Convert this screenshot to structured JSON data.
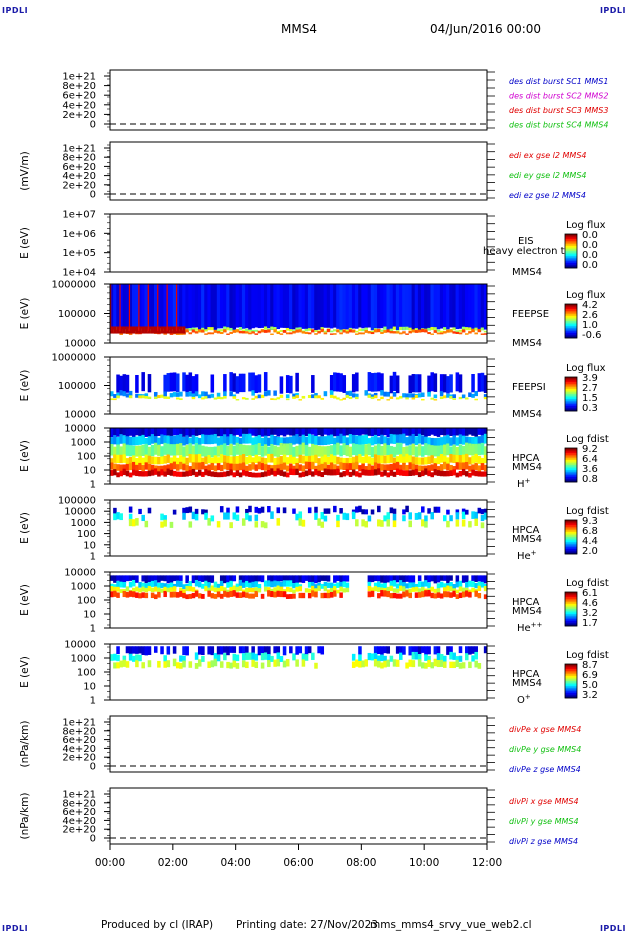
{
  "corners": {
    "tl": "IPDLI",
    "tr": "IPDLI",
    "bl": "IPDLI",
    "br": "IPDLI"
  },
  "header": {
    "spacecraft": "MMS4",
    "datetime": "04/Jun/2016 00:00"
  },
  "footer": {
    "producer": "Produced by cl (IRAP)",
    "printing": "Printing date: 27/Nov/2023",
    "file": "mms_mms4_srvy_vue_web2.cl"
  },
  "colors": {
    "red": "#e00000",
    "green": "#10c010",
    "blue": "#0000c8",
    "magenta": "#d000d0"
  },
  "chart_data": {
    "type": "multi-panel",
    "x_tick_labels": [
      "00:00",
      "02:00",
      "04:00",
      "06:00",
      "08:00",
      "10:00",
      "12:00"
    ],
    "panels": [
      {
        "kind": "line",
        "ylabel": "",
        "ylim": [
          0,
          1e+21
        ],
        "y_ticks": [
          "1e+21",
          "8e+20",
          "6e+20",
          "4e+20",
          "2e+20",
          "0"
        ],
        "legend": [
          {
            "text": "des dist burst SC1 MMS1",
            "color": "#0000c8"
          },
          {
            "text": "des dist burst SC2 MMS2",
            "color": "#d000d0"
          },
          {
            "text": "des dist burst SC3 MMS3",
            "color": "#e00000"
          },
          {
            "text": "des dist burst SC4 MMS4",
            "color": "#10c010"
          }
        ]
      },
      {
        "kind": "line",
        "ylabel": "(mV/m)",
        "ylim": [
          0,
          1e+21
        ],
        "y_ticks": [
          "1e+21",
          "8e+20",
          "6e+20",
          "4e+20",
          "2e+20",
          "0"
        ],
        "legend": [
          {
            "text": "edi ex gse l2 MMS4",
            "color": "#e00000"
          },
          {
            "text": "edi ey gse l2 MMS4",
            "color": "#10c010"
          },
          {
            "text": "edi ez gse l2 MMS4",
            "color": "#0000c8"
          }
        ]
      },
      {
        "kind": "spec",
        "ylabel": "E (eV)",
        "y_ticks": [
          "1e+07",
          "1e+06",
          "1e+05",
          "1e+04"
        ],
        "instrument": [
          "EIS",
          "MMS4"
        ],
        "overlay": "heavy electron to",
        "cbar_title": "Log flux",
        "cbar_labels": [
          "0.0",
          "0.0",
          "0.0",
          "0.0"
        ],
        "profile": {
          "bands": []
        }
      },
      {
        "kind": "spec",
        "ylabel": "E (eV)",
        "y_ticks": [
          "1000000",
          "100000",
          "10000"
        ],
        "instrument": [
          "FEEPSE",
          "MMS4"
        ],
        "cbar_title": "Log flux",
        "cbar_labels": [
          "4.2",
          "2.6",
          "1.0",
          "-0.6"
        ],
        "profile": {
          "bands": [
            {
              "top": 0.0,
              "bot": 0.76,
              "v": 0.12
            },
            {
              "top": 0.76,
              "bot": 0.8,
              "v": 0.55
            },
            {
              "top": 0.8,
              "bot": 0.84,
              "v": 0.78
            }
          ],
          "early_hot": true,
          "density": 1.0
        }
      },
      {
        "kind": "spec",
        "ylabel": "E (eV)",
        "y_ticks": [
          "1000000",
          "100000",
          "10000"
        ],
        "instrument": [
          "FEEPSI",
          "MMS4"
        ],
        "cbar_title": "Log flux",
        "cbar_labels": [
          "3.9",
          "2.7",
          "1.5",
          "0.3"
        ],
        "profile": {
          "bands": [
            {
              "top": 0.3,
              "bot": 0.62,
              "v": 0.12
            },
            {
              "top": 0.62,
              "bot": 0.7,
              "v": 0.28
            },
            {
              "top": 0.7,
              "bot": 0.74,
              "v": 0.62
            }
          ],
          "density": 0.55
        }
      },
      {
        "kind": "spec",
        "ylabel": "E (eV)",
        "y_ticks": [
          "10000",
          "1000",
          "100",
          "10",
          "1"
        ],
        "instrument": [
          "HPCA",
          "MMS4",
          "H+"
        ],
        "cbar_title": "Log fdist",
        "cbar_labels": [
          "9.2",
          "6.4",
          "3.6",
          "0.8"
        ],
        "profile": {
          "bands": [
            {
              "top": 0.0,
              "bot": 0.14,
              "v": 0.08
            },
            {
              "top": 0.14,
              "bot": 0.3,
              "v": 0.3
            },
            {
              "top": 0.3,
              "bot": 0.5,
              "v": 0.5
            },
            {
              "top": 0.5,
              "bot": 0.64,
              "v": 0.66
            },
            {
              "top": 0.64,
              "bot": 0.76,
              "v": 0.78
            },
            {
              "top": 0.76,
              "bot": 0.86,
              "v": 0.92
            }
          ],
          "density": 1.0
        }
      },
      {
        "kind": "spec",
        "ylabel": "E (eV)",
        "y_ticks": [
          "100000",
          "10000",
          "1000",
          "100",
          "10",
          "1"
        ],
        "instrument": [
          "HPCA",
          "MMS4",
          "He+"
        ],
        "cbar_title": "Log fdist",
        "cbar_labels": [
          "9.3",
          "6.8",
          "4.4",
          "2.0"
        ],
        "profile": {
          "bands": [
            {
              "top": 0.14,
              "bot": 0.24,
              "v": 0.08
            },
            {
              "top": 0.24,
              "bot": 0.36,
              "v": 0.35
            },
            {
              "top": 0.36,
              "bot": 0.48,
              "v": 0.58
            }
          ],
          "density": 0.35
        }
      },
      {
        "kind": "spec",
        "ylabel": "E (eV)",
        "y_ticks": [
          "10000",
          "1000",
          "100",
          "10",
          "1"
        ],
        "instrument": [
          "HPCA",
          "MMS4",
          "He++"
        ],
        "cbar_title": "Log fdist",
        "cbar_labels": [
          "6.1",
          "4.6",
          "3.2",
          "1.7"
        ],
        "profile": {
          "bands": [
            {
              "top": 0.06,
              "bot": 0.18,
              "v": 0.08
            },
            {
              "top": 0.18,
              "bot": 0.28,
              "v": 0.35
            },
            {
              "top": 0.28,
              "bot": 0.36,
              "v": 0.6
            },
            {
              "top": 0.36,
              "bot": 0.46,
              "v": 0.82
            }
          ],
          "gap": [
            0.63,
            0.68
          ],
          "density": 0.85
        }
      },
      {
        "kind": "spec",
        "ylabel": "E (eV)",
        "y_ticks": [
          "10000",
          "1000",
          "100",
          "10",
          "1"
        ],
        "instrument": [
          "HPCA",
          "MMS4",
          "O+"
        ],
        "cbar_title": "Log fdist",
        "cbar_labels": [
          "8.7",
          "6.9",
          "5.0",
          "3.2"
        ],
        "profile": {
          "bands": [
            {
              "top": 0.04,
              "bot": 0.18,
              "v": 0.1
            },
            {
              "top": 0.18,
              "bot": 0.3,
              "v": 0.38
            },
            {
              "top": 0.3,
              "bot": 0.42,
              "v": 0.58
            }
          ],
          "gap": [
            0.56,
            0.64
          ],
          "density": 0.6
        }
      },
      {
        "kind": "line",
        "ylabel": "(nPa/km)",
        "ylim": [
          0,
          1e+21
        ],
        "y_ticks": [
          "1e+21",
          "8e+20",
          "6e+20",
          "4e+20",
          "2e+20",
          "0"
        ],
        "legend": [
          {
            "text": "divPe x gse MMS4",
            "color": "#e00000"
          },
          {
            "text": "divPe y gse MMS4",
            "color": "#10c010"
          },
          {
            "text": "divPe z gse MMS4",
            "color": "#0000c8"
          }
        ]
      },
      {
        "kind": "line",
        "ylabel": "(nPa/km)",
        "ylim": [
          0,
          1e+21
        ],
        "y_ticks": [
          "1e+21",
          "8e+20",
          "6e+20",
          "4e+20",
          "2e+20",
          "0"
        ],
        "legend": [
          {
            "text": "divPi x gse MMS4",
            "color": "#e00000"
          },
          {
            "text": "divPi y gse MMS4",
            "color": "#10c010"
          },
          {
            "text": "divPi z gse MMS4",
            "color": "#0000c8"
          }
        ]
      }
    ]
  }
}
